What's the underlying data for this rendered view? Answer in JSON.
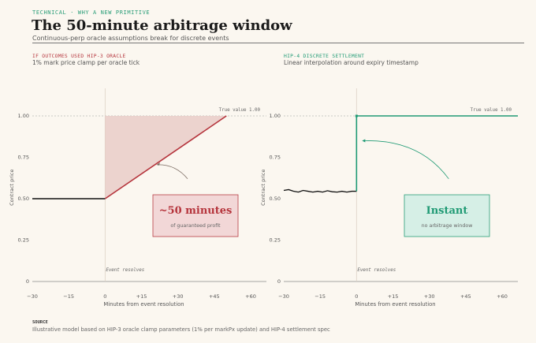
{
  "header": {
    "kicker": "TECHNICAL · WHY A NEW PRIMITIVE",
    "title": "The 50-minute arbitrage window",
    "subtitle": "Continuous-perp oracle assumptions break for discrete events"
  },
  "colors": {
    "red": "#b5343c",
    "green": "#1f9a74",
    "fill_red": "#e9cdc8",
    "box_red_bg": "#f2d6d6",
    "box_green_bg": "#d5efe6"
  },
  "source": {
    "label": "SOURCE",
    "text": "Illustrative model based on HIP-3 oracle clamp parameters (1% per markPx update) and HIP-4 settlement spec"
  },
  "chart_data": [
    {
      "type": "line",
      "title": "IF OUTCOMES USED HIP-3 ORACLE",
      "subtitle": "1% mark price clamp per oracle tick",
      "xlabel": "Minutes from event resolution",
      "ylabel": "Contract price",
      "xlim": [
        -30,
        60
      ],
      "ylim": [
        0,
        1
      ],
      "xticks": [
        "−30",
        "−15",
        "0",
        "+15",
        "+30",
        "+45",
        "+60"
      ],
      "xtick_values": [
        -30,
        -15,
        0,
        15,
        30,
        45,
        60
      ],
      "yticks": [
        "0",
        "0.25",
        "0.50",
        "0.75",
        "1.00"
      ],
      "ytick_values": [
        0,
        0.25,
        0.5,
        0.75,
        1.0
      ],
      "true_value_label": "True value 1.00",
      "event_label": "Event resolves",
      "series": [
        {
          "x": [
            -30,
            0,
            50
          ],
          "y": [
            0.5,
            0.5,
            1.0
          ]
        }
      ],
      "callout": {
        "headline": "~50 minutes",
        "text": "of guaranteed profit"
      }
    },
    {
      "type": "line",
      "title": "HIP-4 DISCRETE SETTLEMENT",
      "subtitle": "Linear interpolation around expiry timestamp",
      "xlabel": "Minutes from event resolution",
      "ylabel": "Contract price",
      "xlim": [
        -30,
        60
      ],
      "ylim": [
        0,
        1
      ],
      "xticks": [
        "−30",
        "−15",
        "0",
        "+15",
        "+30",
        "+45",
        "+60"
      ],
      "xtick_values": [
        -30,
        -15,
        0,
        15,
        30,
        45,
        60
      ],
      "yticks": [
        "0",
        "0.25",
        "0.50",
        "0.75",
        "1.00"
      ],
      "ytick_values": [
        0,
        0.25,
        0.5,
        0.75,
        1.0
      ],
      "true_value_label": "True value 1.00",
      "event_label": "Event resolves",
      "series": [
        {
          "x": [
            -30,
            -28,
            -26,
            -24,
            -22,
            -20,
            -18,
            -16,
            -14,
            -12,
            -10,
            -8,
            -6,
            -4,
            -2,
            0,
            0,
            60
          ],
          "y": [
            0.55,
            0.555,
            0.545,
            0.54,
            0.55,
            0.545,
            0.54,
            0.545,
            0.54,
            0.548,
            0.542,
            0.54,
            0.545,
            0.54,
            0.545,
            0.545,
            1.0,
            1.0
          ]
        }
      ],
      "callout": {
        "headline": "Instant",
        "text": "no arbitrage window"
      }
    }
  ]
}
